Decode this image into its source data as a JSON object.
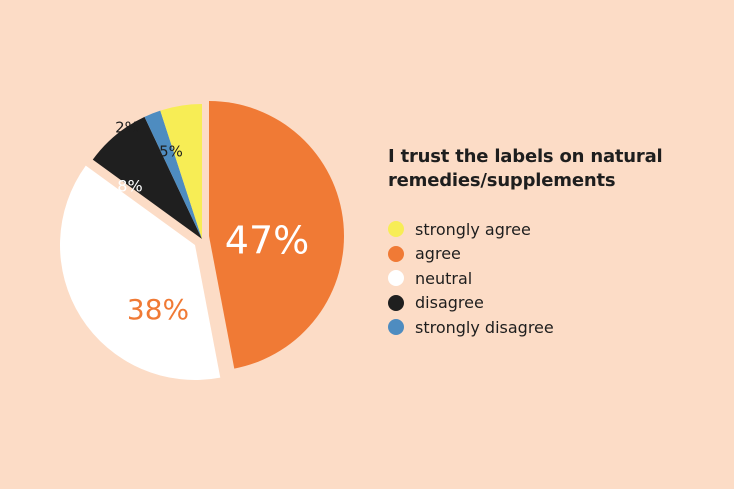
{
  "chart_data": {
    "type": "pie",
    "title": "I trust the labels on natural remedies/supplements",
    "categories": [
      "agree",
      "neutral",
      "disagree",
      "strongly disagree",
      "strongly agree"
    ],
    "values": [
      47,
      38,
      8,
      2,
      5
    ],
    "colors": [
      "#F07A35",
      "#FFFFFF",
      "#1F1F1F",
      "#4E8CC0",
      "#F7ED55"
    ],
    "labels": [
      "47%",
      "38%",
      "8%",
      "2%",
      "5%"
    ],
    "label_colors": [
      "#FFFFFF",
      "#F07A35",
      "#FFFFFF",
      "#1F1F1F",
      "#1F1F1F"
    ],
    "exploded": [
      "agree",
      "neutral"
    ],
    "legend": [
      {
        "label": "strongly agree",
        "color": "#F7ED55"
      },
      {
        "label": "agree",
        "color": "#F07A35"
      },
      {
        "label": "neutral",
        "color": "#FFFFFF"
      },
      {
        "label": "disagree",
        "color": "#1F1F1F"
      },
      {
        "label": "strongly disagree",
        "color": "#4E8CC0"
      }
    ],
    "legend_position": "right"
  },
  "title_line1": "I trust the labels on natural",
  "title_line2": "remedies/supplements",
  "background": "#FCDCC6"
}
